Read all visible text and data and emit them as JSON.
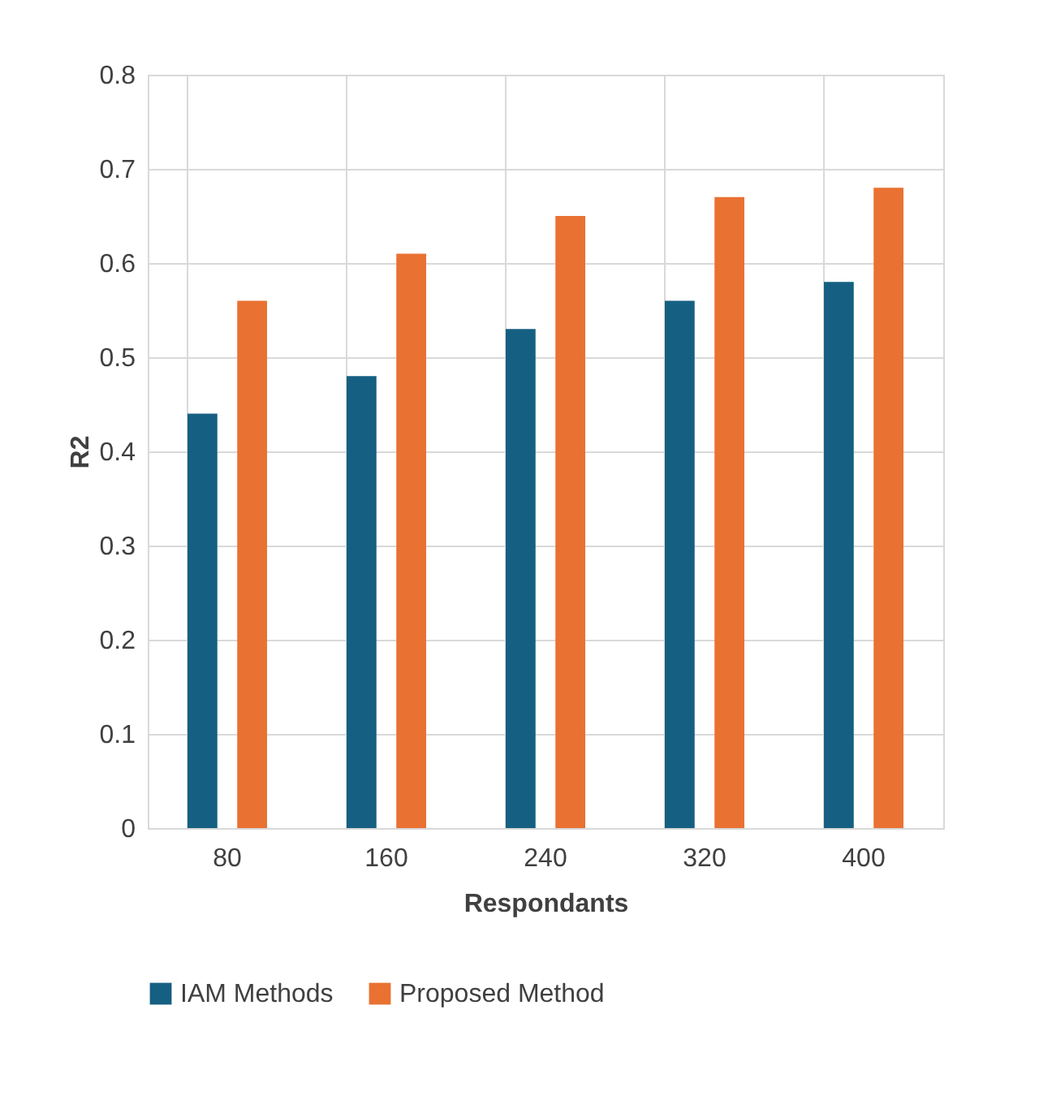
{
  "chart_data": {
    "type": "bar",
    "xlabel": "Respondants",
    "ylabel": "R2",
    "categories": [
      "80",
      "160",
      "240",
      "320",
      "400"
    ],
    "series": [
      {
        "name": "IAM Methods",
        "color": "#156082",
        "values": [
          0.44,
          0.48,
          0.53,
          0.56,
          0.58
        ]
      },
      {
        "name": "Proposed Method",
        "color": "#e97132",
        "values": [
          0.56,
          0.61,
          0.65,
          0.67,
          0.68
        ]
      }
    ],
    "ylim": [
      0,
      0.8
    ],
    "yticks": [
      0,
      0.1,
      0.2,
      0.3,
      0.4,
      0.5,
      0.6,
      0.7,
      0.8
    ],
    "grid": true,
    "legend": "bottom"
  }
}
